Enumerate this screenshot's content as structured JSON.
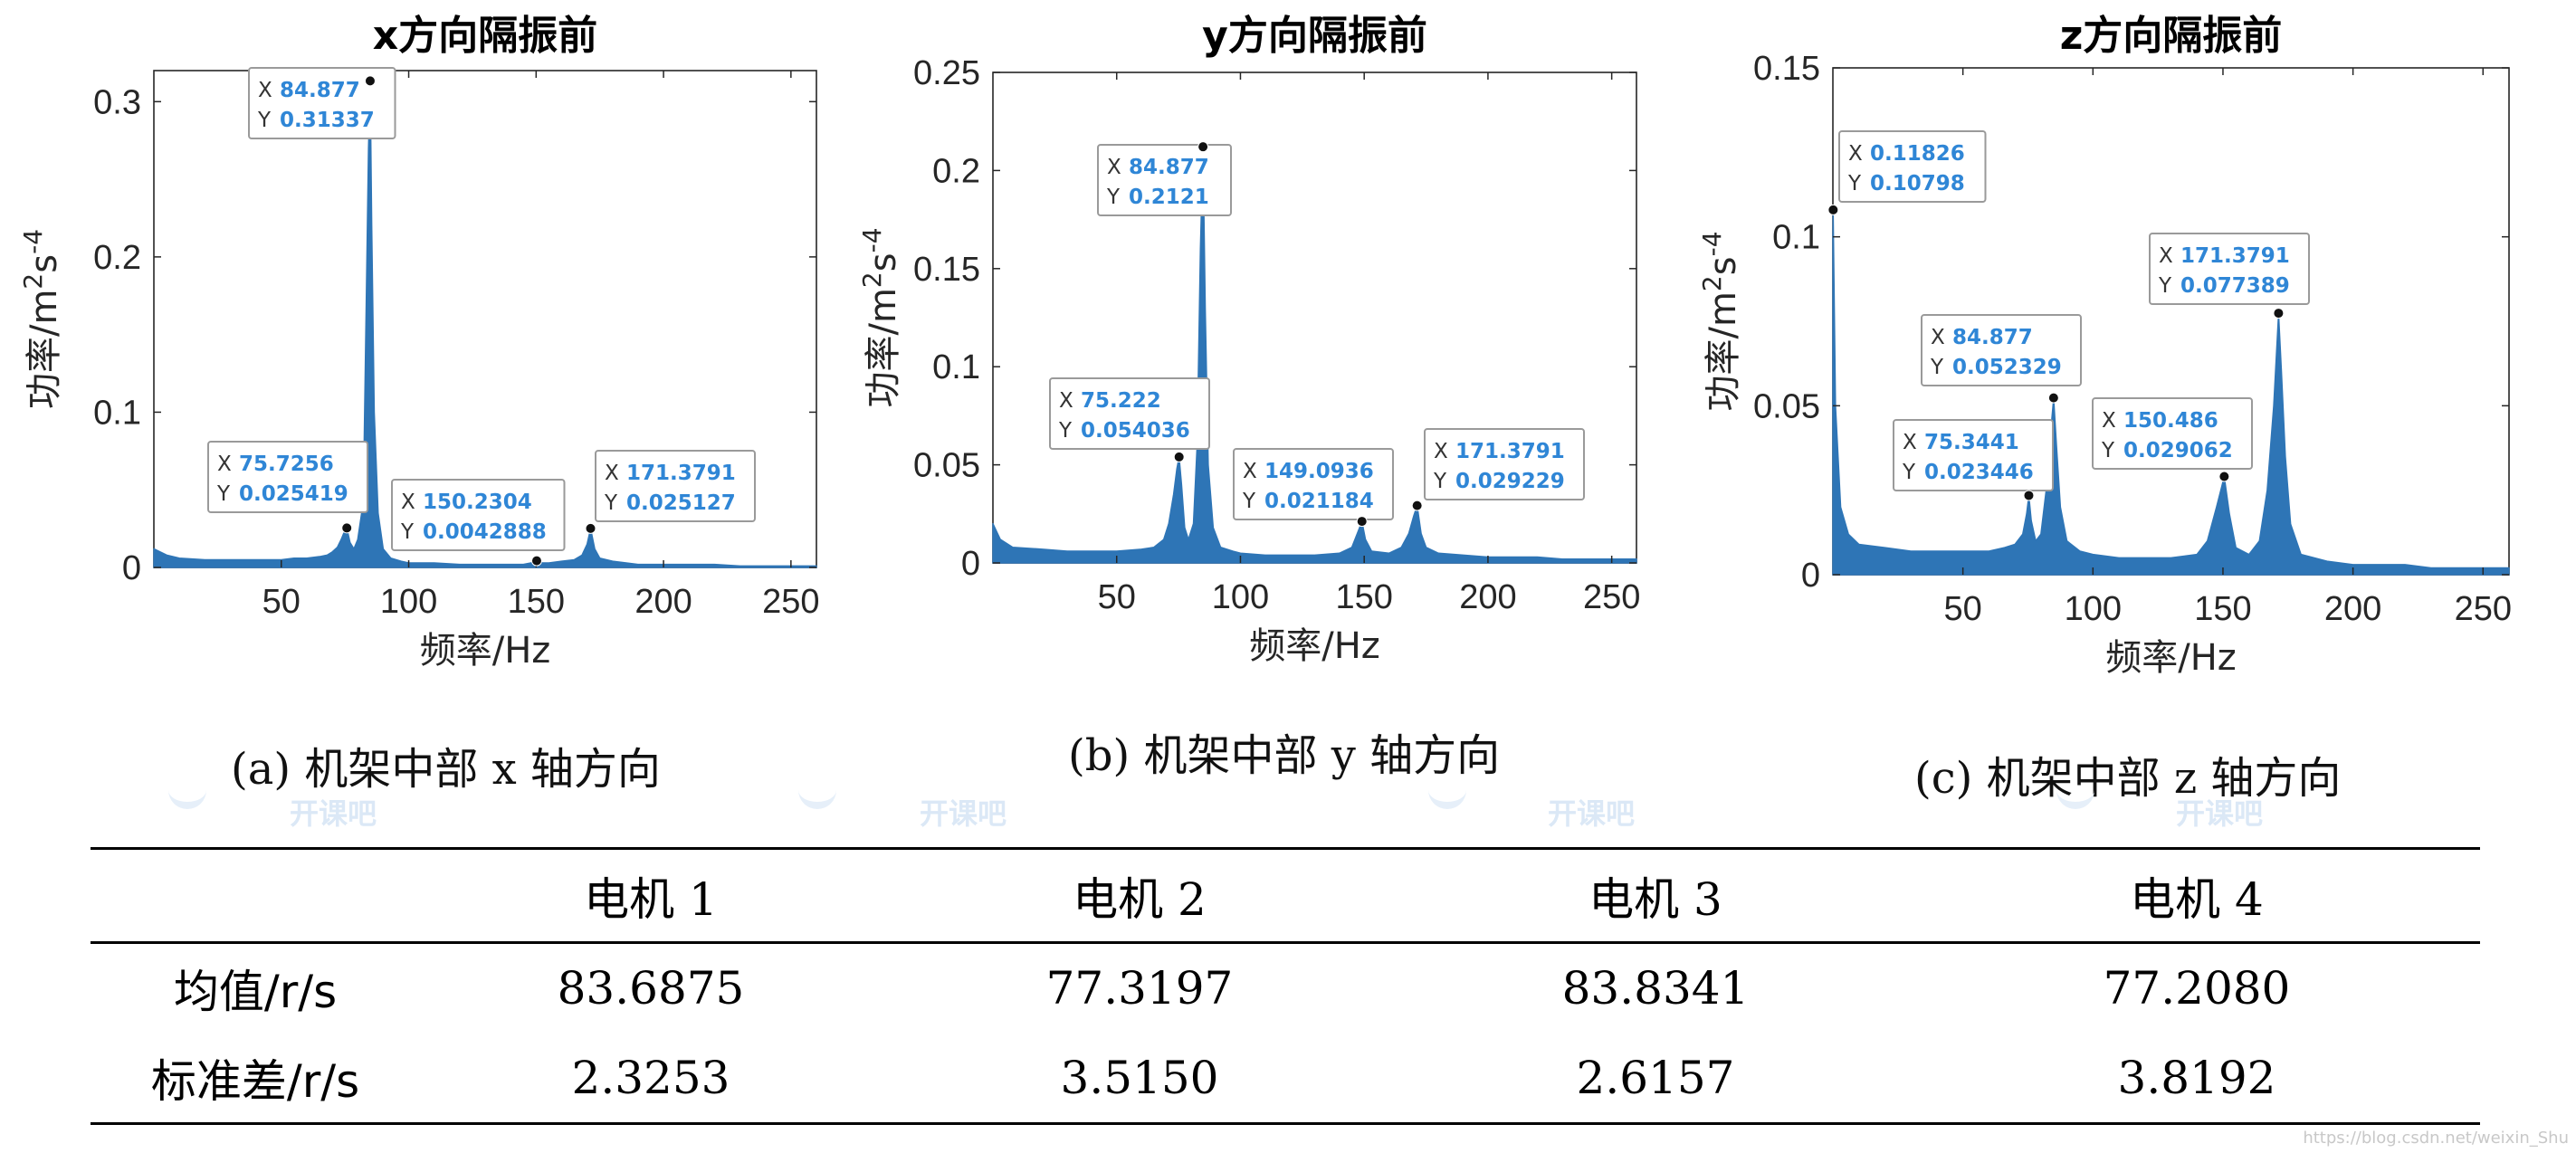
{
  "chart_data": [
    {
      "type": "line",
      "title": "x方向隔振前",
      "xlabel": "频率/Hz",
      "ylabel": "功率/m²s⁻⁴",
      "xlim": [
        0,
        260
      ],
      "ylim": [
        0,
        0.32
      ],
      "xticks": [
        50,
        100,
        150,
        200,
        250
      ],
      "yticks": [
        0,
        0.1,
        0.2,
        0.3
      ],
      "ytick_labels": [
        "0",
        "0.1",
        "0.2",
        "0.3"
      ],
      "grid": false,
      "color": "#2e75b6",
      "caption": "(a)  机架中部 x 轴方向",
      "series": [
        {
          "x": [
            0,
            5,
            10,
            20,
            30,
            40,
            50,
            55,
            60,
            65,
            68,
            70,
            72,
            73.5,
            74.5,
            75.7256,
            77,
            78.5,
            80,
            81.5,
            82.5,
            83.5,
            84.2,
            84.877,
            85.5,
            86.5,
            88,
            90,
            93,
            97,
            100,
            110,
            120,
            130,
            140,
            145,
            148,
            150.2304,
            152.5,
            155,
            160,
            165,
            168,
            170,
            171.3791,
            173,
            175,
            180,
            190,
            200,
            210,
            220,
            230,
            240,
            250,
            260
          ],
          "y": [
            0.012,
            0.008,
            0.006,
            0.005,
            0.005,
            0.005,
            0.005,
            0.006,
            0.006,
            0.007,
            0.008,
            0.01,
            0.013,
            0.018,
            0.022,
            0.025419,
            0.016,
            0.012,
            0.018,
            0.035,
            0.08,
            0.19,
            0.27,
            0.31337,
            0.22,
            0.1,
            0.035,
            0.012,
            0.006,
            0.004,
            0.003,
            0.003,
            0.002,
            0.002,
            0.002,
            0.002,
            0.003,
            0.0042888,
            0.003,
            0.003,
            0.004,
            0.005,
            0.008,
            0.015,
            0.025127,
            0.012,
            0.006,
            0.004,
            0.002,
            0.002,
            0.002,
            0.002,
            0.001,
            0.001,
            0.001,
            0.001
          ]
        }
      ],
      "annotations": [
        {
          "x": 84.877,
          "y": 0.31337,
          "x_label": "X",
          "x_value": "84.877",
          "y_label": "Y",
          "y_value": "0.31337"
        },
        {
          "x": 75.7256,
          "y": 0.025419,
          "x_label": "X",
          "x_value": "75.7256",
          "y_label": "Y",
          "y_value": "0.025419"
        },
        {
          "x": 150.2304,
          "y": 0.0042888,
          "x_label": "X",
          "x_value": "150.2304",
          "y_label": "Y",
          "y_value": "0.0042888"
        },
        {
          "x": 171.3791,
          "y": 0.025127,
          "x_label": "X",
          "x_value": "171.3791",
          "y_label": "Y",
          "y_value": "0.025127"
        }
      ]
    },
    {
      "type": "line",
      "title": "y方向隔振前",
      "xlabel": "频率/Hz",
      "ylabel": "功率/m²s⁻⁴",
      "xlim": [
        0,
        260
      ],
      "ylim": [
        0,
        0.25
      ],
      "xticks": [
        50,
        100,
        150,
        200,
        250
      ],
      "yticks": [
        0,
        0.05,
        0.1,
        0.15,
        0.2,
        0.25
      ],
      "ytick_labels": [
        "0",
        "0.05",
        "0.1",
        "0.15",
        "0.2",
        "0.25"
      ],
      "grid": false,
      "color": "#2e75b6",
      "caption": "(b)  机架中部 y 轴方向",
      "series": [
        {
          "x": [
            0,
            3,
            8,
            20,
            30,
            40,
            50,
            60,
            65,
            69,
            71,
            73,
            74.3,
            75.222,
            76.2,
            77.5,
            79,
            81,
            82.5,
            83.8,
            84.877,
            85.8,
            87,
            89,
            92,
            97,
            100,
            110,
            120,
            130,
            140,
            145,
            147.5,
            149.0936,
            150.5,
            153,
            160,
            165,
            168,
            170,
            171.3791,
            173,
            175,
            180,
            190,
            200,
            210,
            220,
            230,
            240,
            250,
            260
          ],
          "y": [
            0.02,
            0.012,
            0.008,
            0.007,
            0.006,
            0.006,
            0.006,
            0.007,
            0.008,
            0.012,
            0.02,
            0.035,
            0.048,
            0.054036,
            0.04,
            0.018,
            0.012,
            0.02,
            0.06,
            0.16,
            0.2121,
            0.13,
            0.05,
            0.018,
            0.008,
            0.006,
            0.005,
            0.004,
            0.004,
            0.004,
            0.005,
            0.008,
            0.016,
            0.021184,
            0.012,
            0.006,
            0.005,
            0.008,
            0.015,
            0.024,
            0.029229,
            0.015,
            0.008,
            0.005,
            0.004,
            0.003,
            0.003,
            0.003,
            0.002,
            0.002,
            0.002,
            0.002
          ]
        }
      ],
      "annotations": [
        {
          "x": 84.877,
          "y": 0.2121,
          "x_label": "X",
          "x_value": "84.877",
          "y_label": "Y",
          "y_value": "0.2121"
        },
        {
          "x": 75.222,
          "y": 0.054036,
          "x_label": "X",
          "x_value": "75.222",
          "y_label": "Y",
          "y_value": "0.054036"
        },
        {
          "x": 149.0936,
          "y": 0.021184,
          "x_label": "X",
          "x_value": "149.0936",
          "y_label": "Y",
          "y_value": "0.021184"
        },
        {
          "x": 171.3791,
          "y": 0.029229,
          "x_label": "X",
          "x_value": "171.3791",
          "y_label": "Y",
          "y_value": "0.029229"
        }
      ]
    },
    {
      "type": "line",
      "title": "z方向隔振前",
      "xlabel": "频率/Hz",
      "ylabel": "功率/m²s⁻⁴",
      "xlim": [
        0,
        260
      ],
      "ylim": [
        0,
        0.15
      ],
      "xticks": [
        50,
        100,
        150,
        200,
        250
      ],
      "yticks": [
        0,
        0.05,
        0.1,
        0.15
      ],
      "ytick_labels": [
        "0",
        "0.05",
        "0.1",
        "0.15"
      ],
      "grid": false,
      "color": "#2e75b6",
      "caption": "(c)  机架中部 z 轴方向",
      "series": [
        {
          "x": [
            0,
            0.11826,
            1,
            3,
            6,
            10,
            20,
            30,
            40,
            50,
            60,
            66,
            70,
            73,
            74.5,
            75.3441,
            76.3,
            78,
            80,
            82,
            83.5,
            84.877,
            86,
            87.5,
            90,
            95,
            100,
            110,
            120,
            130,
            140,
            144,
            147.5,
            150.486,
            152.5,
            155,
            160,
            164,
            167,
            169.5,
            171.3791,
            172.5,
            174,
            176,
            180,
            190,
            200,
            210,
            220,
            230,
            240,
            250,
            260
          ],
          "y": [
            0.1,
            0.10798,
            0.05,
            0.02,
            0.012,
            0.009,
            0.008,
            0.007,
            0.007,
            0.007,
            0.007,
            0.008,
            0.009,
            0.012,
            0.018,
            0.023446,
            0.016,
            0.01,
            0.012,
            0.025,
            0.04,
            0.052329,
            0.038,
            0.02,
            0.01,
            0.007,
            0.006,
            0.005,
            0.005,
            0.005,
            0.006,
            0.01,
            0.02,
            0.029062,
            0.018,
            0.008,
            0.006,
            0.01,
            0.025,
            0.05,
            0.077389,
            0.06,
            0.035,
            0.015,
            0.006,
            0.004,
            0.003,
            0.003,
            0.003,
            0.002,
            0.002,
            0.002,
            0.002
          ]
        }
      ],
      "annotations": [
        {
          "x": 0.11826,
          "y": 0.10798,
          "x_label": "X",
          "x_value": "0.11826",
          "y_label": "Y",
          "y_value": "0.10798"
        },
        {
          "x": 171.3791,
          "y": 0.077389,
          "x_label": "X",
          "x_value": "171.3791",
          "y_label": "Y",
          "y_value": "0.077389"
        },
        {
          "x": 84.877,
          "y": 0.052329,
          "x_label": "X",
          "x_value": "84.877",
          "y_label": "Y",
          "y_value": "0.052329"
        },
        {
          "x": 75.3441,
          "y": 0.023446,
          "x_label": "X",
          "x_value": "75.3441",
          "y_label": "Y",
          "y_value": "0.023446"
        },
        {
          "x": 150.486,
          "y": 0.029062,
          "x_label": "X",
          "x_value": "150.486",
          "y_label": "Y",
          "y_value": "0.029062"
        }
      ]
    }
  ],
  "watermark": {
    "text": "开课吧",
    "color": "#dbe8f6"
  },
  "source_watermark": "https://blog.csdn.net/weixin_Shu",
  "table": {
    "headers": [
      "",
      "电机 1",
      "电机 2",
      "电机 3",
      "电机 4"
    ],
    "rows": [
      {
        "label": "均值/r/s",
        "values": [
          "83.6875",
          "77.3197",
          "83.8341",
          "77.2080"
        ]
      },
      {
        "label": "标准差/r/s",
        "values": [
          "2.3253",
          "3.5150",
          "2.6157",
          "3.8192"
        ]
      }
    ]
  }
}
